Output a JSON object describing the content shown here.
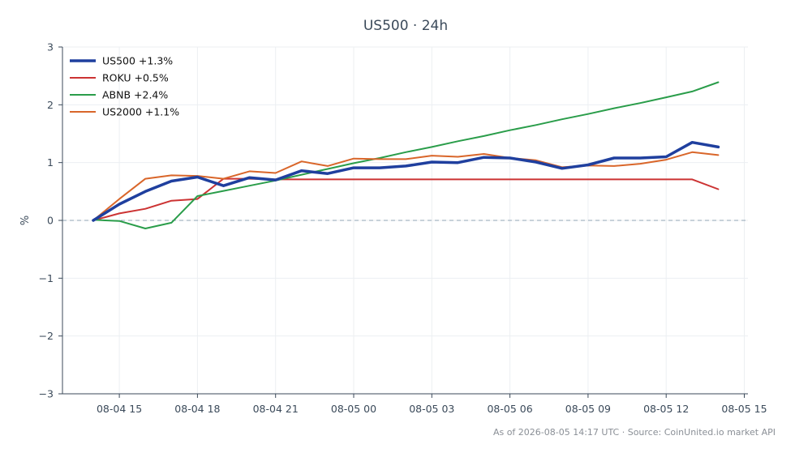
{
  "chart_data": {
    "type": "line",
    "title": "US500 · 24h",
    "xlabel": "",
    "ylabel": "%",
    "ylim": [
      -3,
      3
    ],
    "yticks": [
      "3",
      "2",
      "1",
      "0",
      "−1",
      "−2",
      "−3"
    ],
    "xticks": [
      "08-04 15",
      "08-04 18",
      "08-04 21",
      "08-05 00",
      "08-05 03",
      "08-05 06",
      "08-05 09",
      "08-05 12",
      "08-05 15"
    ],
    "grid": true,
    "legend_position": "top-left",
    "zero_line": true,
    "x": [
      "08-04 14:00",
      "08-04 15:00",
      "08-04 16:00",
      "08-04 17:00",
      "08-04 18:00",
      "08-04 19:00",
      "08-04 20:00",
      "08-04 21:00",
      "08-04 22:00",
      "08-04 23:00",
      "08-05 00:00",
      "08-05 01:00",
      "08-05 02:00",
      "08-05 03:00",
      "08-05 04:00",
      "08-05 05:00",
      "08-05 06:00",
      "08-05 07:00",
      "08-05 08:00",
      "08-05 09:00",
      "08-05 10:00",
      "08-05 11:00",
      "08-05 12:00",
      "08-05 13:00",
      "08-05 14:00"
    ],
    "series": [
      {
        "name": "US500 +1.3%",
        "color": "#1f3f9e",
        "width": 3.5,
        "values": [
          0.0,
          0.28,
          0.5,
          0.68,
          0.75,
          0.6,
          0.74,
          0.7,
          0.86,
          0.81,
          0.91,
          0.91,
          0.94,
          1.01,
          1.0,
          1.09,
          1.08,
          1.01,
          0.9,
          0.96,
          1.08,
          1.08,
          1.1,
          1.35,
          1.27
        ]
      },
      {
        "name": "ROKU +0.5%",
        "color": "#cc3333",
        "width": 2,
        "values": [
          0.0,
          0.12,
          0.2,
          0.34,
          0.37,
          0.72,
          0.72,
          0.71,
          0.71,
          0.71,
          0.71,
          0.71,
          0.71,
          0.71,
          0.71,
          0.71,
          0.71,
          0.71,
          0.71,
          0.71,
          0.71,
          0.71,
          0.71,
          0.71,
          0.54
        ]
      },
      {
        "name": "ABNB +2.4%",
        "color": "#2a9d4a",
        "width": 2,
        "values": [
          0.01,
          -0.01,
          -0.14,
          -0.04,
          0.42,
          0.51,
          0.6,
          0.69,
          0.79,
          0.89,
          0.99,
          1.08,
          1.18,
          1.27,
          1.37,
          1.46,
          1.56,
          1.65,
          1.75,
          1.84,
          1.94,
          2.03,
          2.13,
          2.23,
          2.39
        ]
      },
      {
        "name": "US2000 +1.1%",
        "color": "#d9662a",
        "width": 2,
        "values": [
          0.0,
          0.37,
          0.72,
          0.78,
          0.77,
          0.72,
          0.85,
          0.82,
          1.02,
          0.94,
          1.07,
          1.06,
          1.06,
          1.12,
          1.1,
          1.15,
          1.08,
          1.04,
          0.92,
          0.95,
          0.94,
          0.98,
          1.05,
          1.18,
          1.13
        ]
      }
    ],
    "footer": "As of 2026-08-05 14:17 UTC · Source: CoinUnited.io market API"
  }
}
